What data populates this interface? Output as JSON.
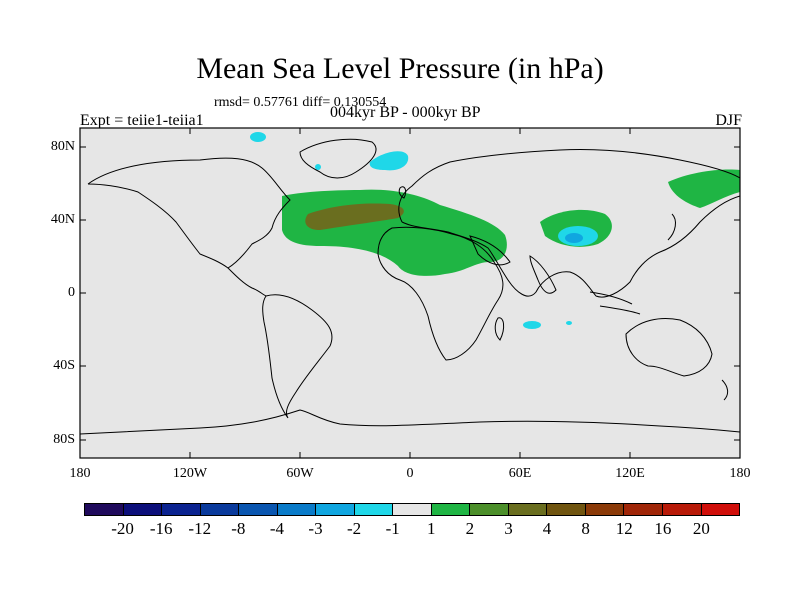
{
  "title": "Mean Sea Level Pressure (in hPa)",
  "stats": "rmsd= 0.57761 diff= 0.130554",
  "experiment": "Expt = teiie1-teiia1",
  "period_diff": "004kyr BP - 000kyr BP",
  "season": "DJF",
  "lat_labels": [
    "80N",
    "40N",
    "0",
    "40S",
    "80S"
  ],
  "lon_labels": [
    "180",
    "120W",
    "60W",
    "0",
    "60E",
    "120E",
    "180"
  ],
  "colorbar": {
    "labels": [
      "-20",
      "-16",
      "-12",
      "-8",
      "-4",
      "-3",
      "-2",
      "-1",
      "1",
      "2",
      "3",
      "4",
      "8",
      "12",
      "16",
      "20"
    ],
    "colors": [
      "#1f0a5c",
      "#0c0f7a",
      "#0b2390",
      "#0a3a9c",
      "#0a56b0",
      "#0a7bc9",
      "#10a6e0",
      "#1fd7e8",
      "#e6e6e6",
      "#1fb544",
      "#4c8f2a",
      "#6a6e1f",
      "#705510",
      "#8b3a08",
      "#a02608",
      "#b81a08",
      "#d00e0a"
    ]
  },
  "map_colors": {
    "background": "#e6e6e6",
    "positive_1_2": "#1fb544",
    "positive_3_4": "#6a6e1f",
    "negative_2_3": "#10a6e0",
    "negative_1_2": "#1fd7e8",
    "coastline": "#000000"
  }
}
